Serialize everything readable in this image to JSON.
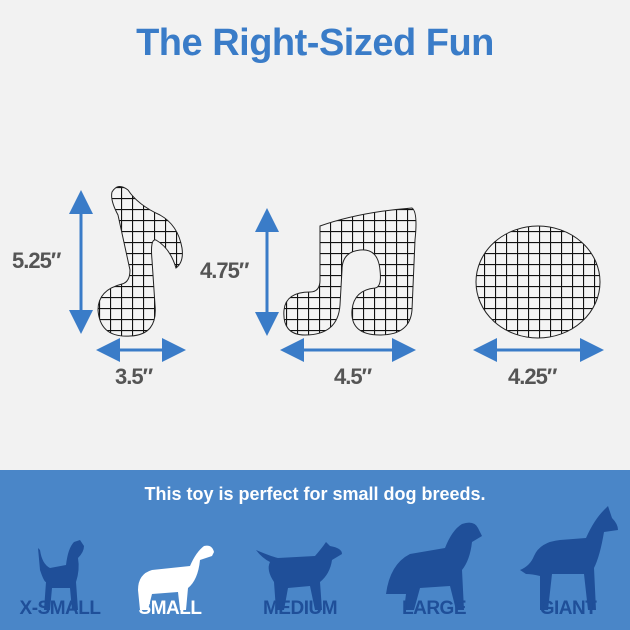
{
  "title": "The Right-Sized Fun",
  "products": [
    {
      "height": "5.25″",
      "width": "3.5″"
    },
    {
      "height": "4.75″",
      "width": "4.5″"
    },
    {
      "width": "4.25″"
    }
  ],
  "band": {
    "tagline": "This toy is perfect for small dog breeds.",
    "sizes": [
      {
        "label": "X-SMALL",
        "active": false
      },
      {
        "label": "SMALL",
        "active": true
      },
      {
        "label": "MEDIUM",
        "active": false
      },
      {
        "label": "LARGE",
        "active": false
      },
      {
        "label": "GIANT",
        "active": false
      }
    ]
  },
  "colors": {
    "title": "#3a7cc8",
    "arrow": "#3a7cc8",
    "band": "#4a86c8",
    "dog": "#1f4f99",
    "active": "#ffffff"
  }
}
